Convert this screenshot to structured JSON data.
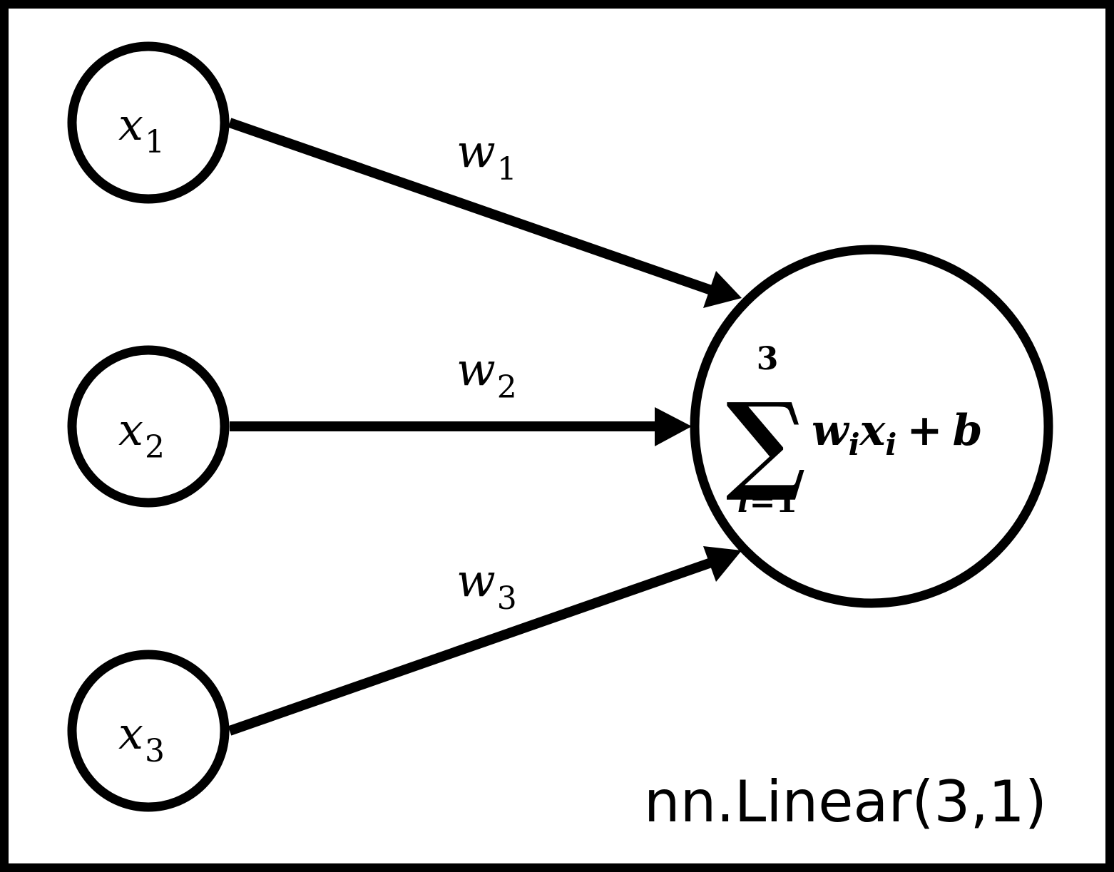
{
  "colors": {
    "ink": "#000000",
    "background": "#ffffff"
  },
  "inputs": [
    {
      "symbol": "x",
      "subscript": "1"
    },
    {
      "symbol": "x",
      "subscript": "2"
    },
    {
      "symbol": "x",
      "subscript": "3"
    }
  ],
  "weights": [
    {
      "symbol": "w",
      "subscript": "1"
    },
    {
      "symbol": "w",
      "subscript": "2"
    },
    {
      "symbol": "w",
      "subscript": "3"
    }
  ],
  "neuron": {
    "sum_symbol": "∑",
    "sum_upper": "3",
    "sum_lower_var": "i",
    "sum_lower_eq": "=1",
    "term_w": "w",
    "term_w_sub": "i",
    "term_x": "x",
    "term_x_sub": "i",
    "plus": "+",
    "bias": "b"
  },
  "caption": "nn.Linear(3,1)"
}
